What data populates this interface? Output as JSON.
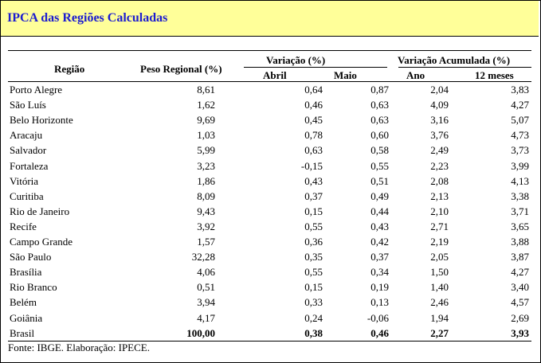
{
  "title": "IPCA das Regiões Calculadas",
  "headers": {
    "regiao": "Região",
    "peso": "Peso Regional (%)",
    "variacao": "Variação (%)",
    "abril": "Abril",
    "maio": "Maio",
    "acumulada": "Variação Acumulada (%)",
    "ano": "Ano",
    "doze": "12 meses"
  },
  "rows": [
    {
      "regiao": "Porto Alegre",
      "peso": "8,61",
      "abril": "0,64",
      "maio": "0,87",
      "ano": "2,04",
      "doze": "3,83"
    },
    {
      "regiao": "São Luís",
      "peso": "1,62",
      "abril": "0,46",
      "maio": "0,63",
      "ano": "4,09",
      "doze": "4,27"
    },
    {
      "regiao": "Belo Horizonte",
      "peso": "9,69",
      "abril": "0,45",
      "maio": "0,63",
      "ano": "3,16",
      "doze": "5,07"
    },
    {
      "regiao": "Aracaju",
      "peso": "1,03",
      "abril": "0,78",
      "maio": "0,60",
      "ano": "3,76",
      "doze": "4,73"
    },
    {
      "regiao": "Salvador",
      "peso": "5,99",
      "abril": "0,63",
      "maio": "0,58",
      "ano": "2,49",
      "doze": "3,73"
    },
    {
      "regiao": "Fortaleza",
      "peso": "3,23",
      "abril": "-0,15",
      "maio": "0,55",
      "ano": "2,23",
      "doze": "3,99"
    },
    {
      "regiao": "Vitória",
      "peso": "1,86",
      "abril": "0,43",
      "maio": "0,51",
      "ano": "2,08",
      "doze": "4,13"
    },
    {
      "regiao": "Curitiba",
      "peso": "8,09",
      "abril": "0,37",
      "maio": "0,49",
      "ano": "2,13",
      "doze": "3,38"
    },
    {
      "regiao": "Rio de Janeiro",
      "peso": "9,43",
      "abril": "0,15",
      "maio": "0,44",
      "ano": "2,10",
      "doze": "3,71"
    },
    {
      "regiao": "Recife",
      "peso": "3,92",
      "abril": "0,55",
      "maio": "0,43",
      "ano": "2,71",
      "doze": "3,65"
    },
    {
      "regiao": "Campo Grande",
      "peso": "1,57",
      "abril": "0,36",
      "maio": "0,42",
      "ano": "2,19",
      "doze": "3,88"
    },
    {
      "regiao": "São Paulo",
      "peso": "32,28",
      "abril": "0,35",
      "maio": "0,37",
      "ano": "2,05",
      "doze": "3,87"
    },
    {
      "regiao": "Brasília",
      "peso": "4,06",
      "abril": "0,55",
      "maio": "0,34",
      "ano": "1,50",
      "doze": "4,27"
    },
    {
      "regiao": "Rio Branco",
      "peso": "0,51",
      "abril": "0,15",
      "maio": "0,19",
      "ano": "1,40",
      "doze": "3,40"
    },
    {
      "regiao": "Belém",
      "peso": "3,94",
      "abril": "0,33",
      "maio": "0,13",
      "ano": "2,46",
      "doze": "4,57"
    },
    {
      "regiao": "Goiânia",
      "peso": "4,17",
      "abril": "0,24",
      "maio": "-0,06",
      "ano": "1,94",
      "doze": "2,69"
    },
    {
      "regiao": "Brasil",
      "peso": "100,00",
      "abril": "0,38",
      "maio": "0,46",
      "ano": "2,27",
      "doze": "3,93"
    }
  ],
  "source": "Fonte: IBGE. Elaboração: IPECE."
}
